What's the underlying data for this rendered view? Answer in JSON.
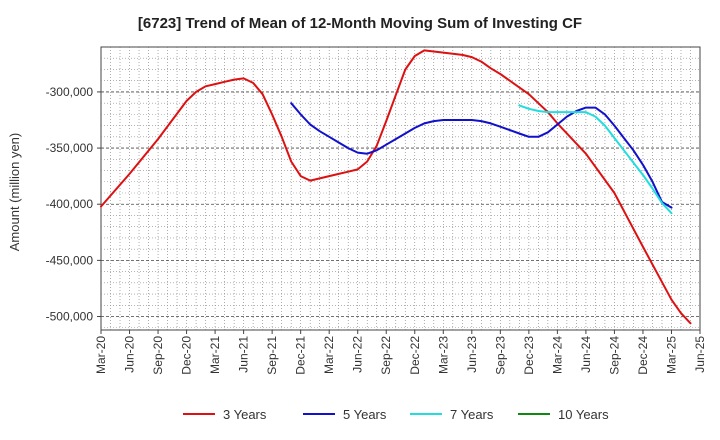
{
  "chart_data": {
    "type": "line",
    "title": "[6723]  Trend of Mean of 12-Month Moving Sum of Investing CF",
    "xlabel": "",
    "ylabel": "Amount (million yen)",
    "ylim": [
      -512000,
      -260000
    ],
    "yticks": [
      -300000,
      -350000,
      -400000,
      -450000,
      -500000
    ],
    "ytick_labels": [
      "-300,000",
      "-350,000",
      "-400,000",
      "-450,000",
      "-500,000"
    ],
    "xlim": [
      "2020-03",
      "2025-06"
    ],
    "xtick_labels": [
      "Mar-20",
      "Jun-20",
      "Sep-20",
      "Dec-20",
      "Mar-21",
      "Jun-21",
      "Sep-21",
      "Dec-21",
      "Mar-22",
      "Jun-22",
      "Sep-22",
      "Dec-22",
      "Mar-23",
      "Jun-23",
      "Sep-23",
      "Dec-23",
      "Mar-24",
      "Jun-24",
      "Sep-24",
      "Dec-24",
      "Mar-25",
      "Jun-25"
    ],
    "grid": true,
    "legend_position": "bottom",
    "series": [
      {
        "name": "3 Years",
        "color": "#dd1111",
        "points": [
          [
            "2020-03",
            -402000
          ],
          [
            "2020-06",
            -373000
          ],
          [
            "2020-09",
            -342000
          ],
          [
            "2020-12",
            -308000
          ],
          [
            "2021-01",
            -300000
          ],
          [
            "2021-02",
            -295000
          ],
          [
            "2021-03",
            -293000
          ],
          [
            "2021-04",
            -291000
          ],
          [
            "2021-05",
            -289000
          ],
          [
            "2021-06",
            -288000
          ],
          [
            "2021-07",
            -292000
          ],
          [
            "2021-08",
            -302000
          ],
          [
            "2021-09",
            -320000
          ],
          [
            "2021-10",
            -340000
          ],
          [
            "2021-11",
            -362000
          ],
          [
            "2021-12",
            -375000
          ],
          [
            "2022-01",
            -379000
          ],
          [
            "2022-02",
            -377000
          ],
          [
            "2022-03",
            -375000
          ],
          [
            "2022-04",
            -373000
          ],
          [
            "2022-05",
            -371000
          ],
          [
            "2022-06",
            -369000
          ],
          [
            "2022-07",
            -362000
          ],
          [
            "2022-08",
            -348000
          ],
          [
            "2022-09",
            -326000
          ],
          [
            "2022-10",
            -303000
          ],
          [
            "2022-11",
            -280000
          ],
          [
            "2022-12",
            -268000
          ],
          [
            "2023-01",
            -263000
          ],
          [
            "2023-02",
            -264000
          ],
          [
            "2023-03",
            -265000
          ],
          [
            "2023-04",
            -266000
          ],
          [
            "2023-05",
            -267000
          ],
          [
            "2023-06",
            -269000
          ],
          [
            "2023-07",
            -273000
          ],
          [
            "2023-08",
            -279000
          ],
          [
            "2023-09",
            -284000
          ],
          [
            "2023-10",
            -290000
          ],
          [
            "2023-11",
            -296000
          ],
          [
            "2023-12",
            -302000
          ],
          [
            "2024-01",
            -310000
          ],
          [
            "2024-02",
            -318000
          ],
          [
            "2024-03",
            -328000
          ],
          [
            "2024-06",
            -355000
          ],
          [
            "2024-09",
            -390000
          ],
          [
            "2024-12",
            -438000
          ],
          [
            "2025-03",
            -485000
          ],
          [
            "2025-04",
            -497000
          ],
          [
            "2025-05",
            -506000
          ]
        ]
      },
      {
        "name": "5 Years",
        "color": "#1111cc",
        "points": [
          [
            "2021-11",
            -310000
          ],
          [
            "2021-12",
            -320000
          ],
          [
            "2022-01",
            -329000
          ],
          [
            "2022-02",
            -335000
          ],
          [
            "2022-03",
            -340000
          ],
          [
            "2022-04",
            -345000
          ],
          [
            "2022-05",
            -350000
          ],
          [
            "2022-06",
            -354000
          ],
          [
            "2022-07",
            -355000
          ],
          [
            "2022-08",
            -352000
          ],
          [
            "2022-09",
            -347000
          ],
          [
            "2022-10",
            -342000
          ],
          [
            "2022-11",
            -337000
          ],
          [
            "2022-12",
            -332000
          ],
          [
            "2023-01",
            -328000
          ],
          [
            "2023-02",
            -326000
          ],
          [
            "2023-03",
            -325000
          ],
          [
            "2023-06",
            -325000
          ],
          [
            "2023-07",
            -326000
          ],
          [
            "2023-08",
            -328000
          ],
          [
            "2023-09",
            -331000
          ],
          [
            "2023-10",
            -334000
          ],
          [
            "2023-11",
            -337000
          ],
          [
            "2023-12",
            -340000
          ],
          [
            "2024-01",
            -340000
          ],
          [
            "2024-02",
            -336000
          ],
          [
            "2024-03",
            -329000
          ],
          [
            "2024-04",
            -322000
          ],
          [
            "2024-05",
            -317000
          ],
          [
            "2024-06",
            -314000
          ],
          [
            "2024-07",
            -314000
          ],
          [
            "2024-08",
            -320000
          ],
          [
            "2024-09",
            -330000
          ],
          [
            "2024-10",
            -341000
          ],
          [
            "2024-11",
            -352000
          ],
          [
            "2024-12",
            -365000
          ],
          [
            "2025-01",
            -380000
          ],
          [
            "2025-02",
            -398000
          ],
          [
            "2025-03",
            -403000
          ]
        ]
      },
      {
        "name": "7 Years",
        "color": "#22dddd",
        "points": [
          [
            "2023-11",
            -312000
          ],
          [
            "2023-12",
            -315000
          ],
          [
            "2024-01",
            -317000
          ],
          [
            "2024-02",
            -318000
          ],
          [
            "2024-03",
            -318000
          ],
          [
            "2024-04",
            -318000
          ],
          [
            "2024-05",
            -318000
          ],
          [
            "2024-06",
            -318000
          ],
          [
            "2024-07",
            -322000
          ],
          [
            "2024-08",
            -330000
          ],
          [
            "2024-09",
            -341000
          ],
          [
            "2024-10",
            -352000
          ],
          [
            "2024-11",
            -363000
          ],
          [
            "2024-12",
            -374000
          ],
          [
            "2025-01",
            -386000
          ],
          [
            "2025-02",
            -399000
          ],
          [
            "2025-03",
            -408000
          ]
        ]
      },
      {
        "name": "10 Years",
        "color": "#118811",
        "points": []
      }
    ]
  }
}
